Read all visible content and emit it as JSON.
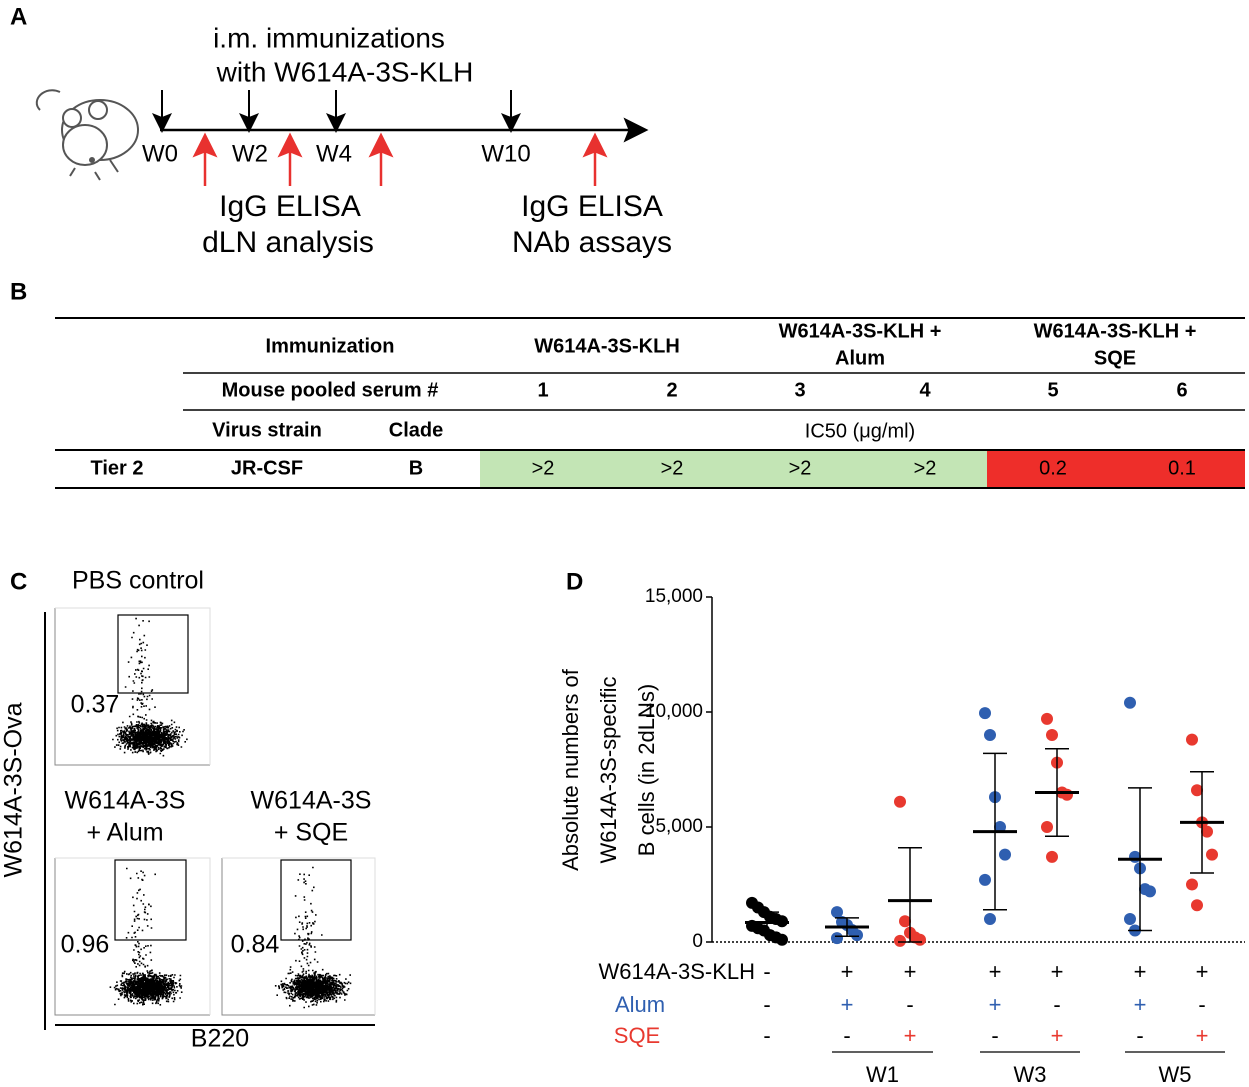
{
  "panel_labels": [
    "A",
    "B",
    "C",
    "D"
  ],
  "timeline": {
    "title_lines": [
      "i.m. immunizations",
      "with W614A-3S-KLH"
    ],
    "weeks": [
      "W0",
      "W2",
      "W4",
      "W10"
    ],
    "annotations": [
      [
        "IgG ELISA",
        "dLN analysis"
      ],
      [
        "IgG ELISA",
        "NAb assays"
      ]
    ],
    "annotation_color": "#e8312f"
  },
  "table": {
    "header": {
      "immunization": "Immunization",
      "groups": [
        [
          "W614A-3S-KLH"
        ],
        [
          "W614A-3S-KLH +",
          "Alum"
        ],
        [
          "W614A-3S-KLH +",
          "SQE"
        ]
      ]
    },
    "serum_label": "Mouse pooled serum #",
    "serum_numbers": [
      "1",
      "2",
      "3",
      "4",
      "5",
      "6"
    ],
    "virus_strain": "Virus strain",
    "clade": "Clade",
    "unit": "IC50 (μg/ml)",
    "row": {
      "tier": "Tier 2",
      "strain": "JR-CSF",
      "clade": "B",
      "values": [
        ">2",
        ">2",
        ">2",
        ">2",
        "0.2",
        "0.1"
      ],
      "colors": [
        "#c3e5b5",
        "#c3e5b5",
        "#c3e5b5",
        "#c3e5b5",
        "#ee2e2a",
        "#ee2e2a"
      ]
    }
  },
  "flow": {
    "y_label": "W614A-3S-Ova",
    "x_label": "B220",
    "plots": [
      {
        "title": [
          "PBS control"
        ],
        "gate": "0.37"
      },
      {
        "title": [
          "W614A-3S",
          "+ Alum"
        ],
        "gate": "0.96"
      },
      {
        "title": [
          "W614A-3S",
          "+ SQE"
        ],
        "gate": "0.84"
      }
    ]
  },
  "chart_data": {
    "type": "dot",
    "y_label": [
      "Absolute numbers of",
      "W614A-3S-specific",
      "B cells (in 2dLNs)"
    ],
    "ylim": [
      0,
      15000
    ],
    "yticks": [
      0,
      {
        "value": 5000,
        "label": "5,000"
      },
      {
        "value": 10000,
        "label": "10,000"
      },
      {
        "value": 15000,
        "label": "15,000"
      }
    ],
    "series": [
      {
        "color": "#000000",
        "values": [
          1700,
          1500,
          1300,
          1100,
          1000,
          900,
          700,
          600,
          500,
          300,
          200,
          100
        ],
        "mean": 850,
        "error": 450
      },
      {
        "color": "#2f5fb0",
        "values": [
          1300,
          870,
          740,
          520,
          300,
          170
        ],
        "mean": 650,
        "error": 400
      },
      {
        "color": "#e8392f",
        "values": [
          6100,
          900,
          400,
          200,
          100,
          50
        ],
        "mean": 1800,
        "error": 2300
      },
      {
        "color": "#2f5fb0",
        "values": [
          9950,
          9000,
          6300,
          5000,
          3800,
          2700,
          1000
        ],
        "mean": 4800,
        "error": 3400
      },
      {
        "color": "#e8392f",
        "values": [
          9700,
          9000,
          7800,
          6500,
          6400,
          5000,
          3700
        ],
        "mean": 6500,
        "error": 1900
      },
      {
        "color": "#2f5fb0",
        "values": [
          10400,
          3700,
          3200,
          2300,
          2200,
          1000,
          500
        ],
        "mean": 3600,
        "error": 3100
      },
      {
        "color": "#e8392f",
        "values": [
          8800,
          6600,
          5200,
          4800,
          3800,
          2500,
          1600
        ],
        "mean": 5200,
        "error": 2200
      }
    ],
    "rows": [
      {
        "name": "W614A-3S-KLH",
        "color": "#000000",
        "signs": [
          "-",
          "+",
          "+",
          "+",
          "+",
          "+",
          "+"
        ]
      },
      {
        "name": "Alum",
        "color": "#2f5fb0",
        "signs": [
          "-",
          "+",
          "-",
          "+",
          "-",
          "+",
          "-"
        ]
      },
      {
        "name": "SQE",
        "color": "#e8392f",
        "signs": [
          "-",
          "-",
          "+",
          "-",
          "+",
          "-",
          "+"
        ]
      }
    ],
    "timepoints": [
      "W1",
      "W3",
      "W5"
    ]
  }
}
